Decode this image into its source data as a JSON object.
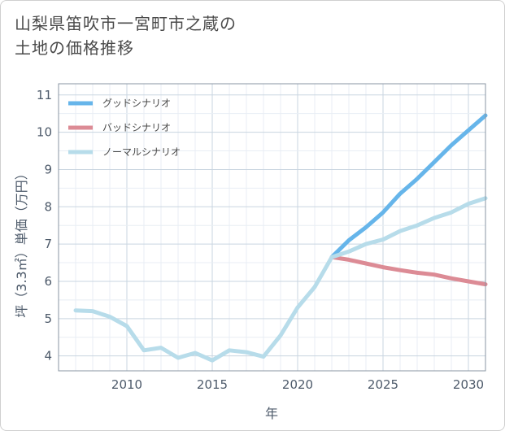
{
  "title_lines": [
    "山梨県笛吹市一宮町市之蔵の",
    "土地の価格推移"
  ],
  "chart_data": {
    "type": "line",
    "xlabel": "年",
    "ylabel": "坪（3.3㎡）単価（万円）",
    "xlim": [
      2006,
      2031
    ],
    "ylim": [
      3.6,
      11.3
    ],
    "xticks": [
      2010,
      2015,
      2020,
      2025,
      2030
    ],
    "yticks": [
      4,
      5,
      6,
      7,
      8,
      9,
      10,
      11
    ],
    "grid": true,
    "legend_position": "top-left",
    "series": [
      {
        "name": "グッドシナリオ",
        "color": "#66b5ea",
        "x": [
          2022,
          2023,
          2024,
          2025,
          2026,
          2027,
          2028,
          2029,
          2030,
          2031
        ],
        "y": [
          6.65,
          7.1,
          7.45,
          7.85,
          8.35,
          8.75,
          9.2,
          9.65,
          10.05,
          10.45
        ]
      },
      {
        "name": "バッドシナリオ",
        "color": "#dc8b95",
        "x": [
          2022,
          2023,
          2024,
          2025,
          2026,
          2027,
          2028,
          2029,
          2030,
          2031
        ],
        "y": [
          6.65,
          6.58,
          6.48,
          6.38,
          6.3,
          6.23,
          6.18,
          6.08,
          6.0,
          5.92
        ]
      },
      {
        "name": "ノーマルシナリオ",
        "color": "#b7dcea",
        "x": [
          2007,
          2008,
          2009,
          2010,
          2011,
          2012,
          2013,
          2014,
          2015,
          2016,
          2017,
          2018,
          2019,
          2020,
          2021,
          2022,
          2023,
          2024,
          2025,
          2026,
          2027,
          2028,
          2029,
          2030,
          2031
        ],
        "y": [
          5.22,
          5.2,
          5.05,
          4.8,
          4.15,
          4.22,
          3.95,
          4.08,
          3.88,
          4.15,
          4.1,
          3.98,
          4.55,
          5.3,
          5.85,
          6.65,
          6.8,
          7.0,
          7.12,
          7.35,
          7.5,
          7.7,
          7.85,
          8.08,
          8.23
        ]
      }
    ]
  }
}
